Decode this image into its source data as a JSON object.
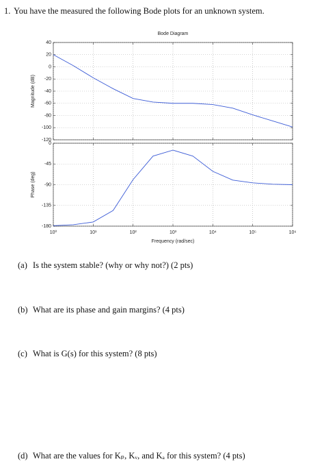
{
  "problem": {
    "number": "1.",
    "text": "You have the measured the following Bode plots for an unknown system."
  },
  "chart_data": [
    {
      "type": "line",
      "title": "Bode Diagram",
      "ylabel": "Magnitude (dB)",
      "xscale": "log",
      "grid": true,
      "x": [
        1,
        3.16,
        10,
        31.6,
        100,
        316,
        1000,
        3162,
        10000,
        31623,
        100000,
        316228,
        1000000
      ],
      "series": [
        {
          "color": "#3b5bd6",
          "values": [
            20,
            2,
            -18,
            -36,
            -52,
            -58,
            -60,
            -60,
            -62,
            -68,
            -79,
            -89,
            -99
          ]
        }
      ],
      "xlim": [
        1,
        1000000
      ],
      "ylim": [
        -120,
        40
      ],
      "yticks": [
        40,
        20,
        0,
        -20,
        -40,
        -60,
        -80,
        -100,
        -120
      ]
    },
    {
      "type": "line",
      "ylabel": "Phase (deg)",
      "xlabel": "Frequency (rad/sec)",
      "xscale": "log",
      "grid": true,
      "x": [
        1,
        3.16,
        10,
        31.6,
        100,
        316,
        1000,
        3162,
        10000,
        31623,
        100000,
        316228,
        1000000
      ],
      "series": [
        {
          "color": "#3b5bd6",
          "values": [
            -179,
            -177,
            -171,
            -146,
            -79,
            -28,
            -15,
            -28,
            -61,
            -80,
            -86,
            -89,
            -90
          ]
        }
      ],
      "xlim": [
        1,
        1000000
      ],
      "ylim": [
        -180,
        0
      ],
      "yticks": [
        0,
        -45,
        -90,
        -135,
        -180
      ],
      "xticks": [
        {
          "value": 1,
          "label": "10⁰"
        },
        {
          "value": 10,
          "label": "10¹"
        },
        {
          "value": 100,
          "label": "10²"
        },
        {
          "value": 1000,
          "label": "10³"
        },
        {
          "value": 10000,
          "label": "10⁴"
        },
        {
          "value": 100000,
          "label": "10⁵"
        },
        {
          "value": 1000000,
          "label": "10⁶"
        }
      ]
    }
  ],
  "questions": [
    {
      "label": "(a)",
      "text": "Is the system stable? (why or why not?) (2 pts)"
    },
    {
      "label": "(b)",
      "text": "What are its phase and gain margins? (4 pts)"
    },
    {
      "label": "(c)",
      "text": "What is G(s) for this system? (8 pts)"
    },
    {
      "label": "(d)",
      "text": "What are the values for Kₚ, Kᵥ, and Kₐ for this system? (4 pts)"
    }
  ]
}
